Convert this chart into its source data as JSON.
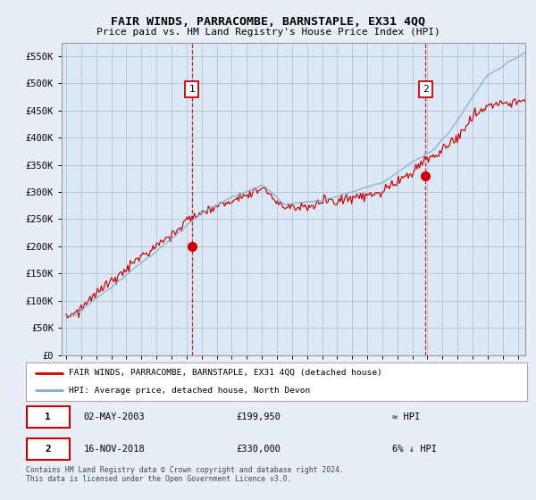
{
  "title": "FAIR WINDS, PARRACOMBE, BARNSTAPLE, EX31 4QQ",
  "subtitle": "Price paid vs. HM Land Registry's House Price Index (HPI)",
  "ylabel_ticks": [
    "£0",
    "£50K",
    "£100K",
    "£150K",
    "£200K",
    "£250K",
    "£300K",
    "£350K",
    "£400K",
    "£450K",
    "£500K",
    "£550K"
  ],
  "ytick_values": [
    0,
    50000,
    100000,
    150000,
    200000,
    250000,
    300000,
    350000,
    400000,
    450000,
    500000,
    550000
  ],
  "ylim": [
    0,
    575000
  ],
  "xlim_start": 1994.7,
  "xlim_end": 2025.5,
  "marker1_x": 2003.35,
  "marker1_y": 199950,
  "marker2_x": 2018.88,
  "marker2_y": 330000,
  "sale1_date": "02-MAY-2003",
  "sale1_price": "£199,950",
  "sale1_vs": "≈ HPI",
  "sale2_date": "16-NOV-2018",
  "sale2_price": "£330,000",
  "sale2_vs": "6% ↓ HPI",
  "legend_line1": "FAIR WINDS, PARRACOMBE, BARNSTAPLE, EX31 4QQ (detached house)",
  "legend_line2": "HPI: Average price, detached house, North Devon",
  "footer": "Contains HM Land Registry data © Crown copyright and database right 2024.\nThis data is licensed under the Open Government Licence v3.0.",
  "hpi_color": "#7ab0d4",
  "price_color": "#cc0000",
  "bg_color": "#e8eef5",
  "plot_bg": "#dce8f5",
  "grid_color": "#b8c8d8",
  "legend_bg": "#ffffff",
  "box_edge": "#cc0000"
}
